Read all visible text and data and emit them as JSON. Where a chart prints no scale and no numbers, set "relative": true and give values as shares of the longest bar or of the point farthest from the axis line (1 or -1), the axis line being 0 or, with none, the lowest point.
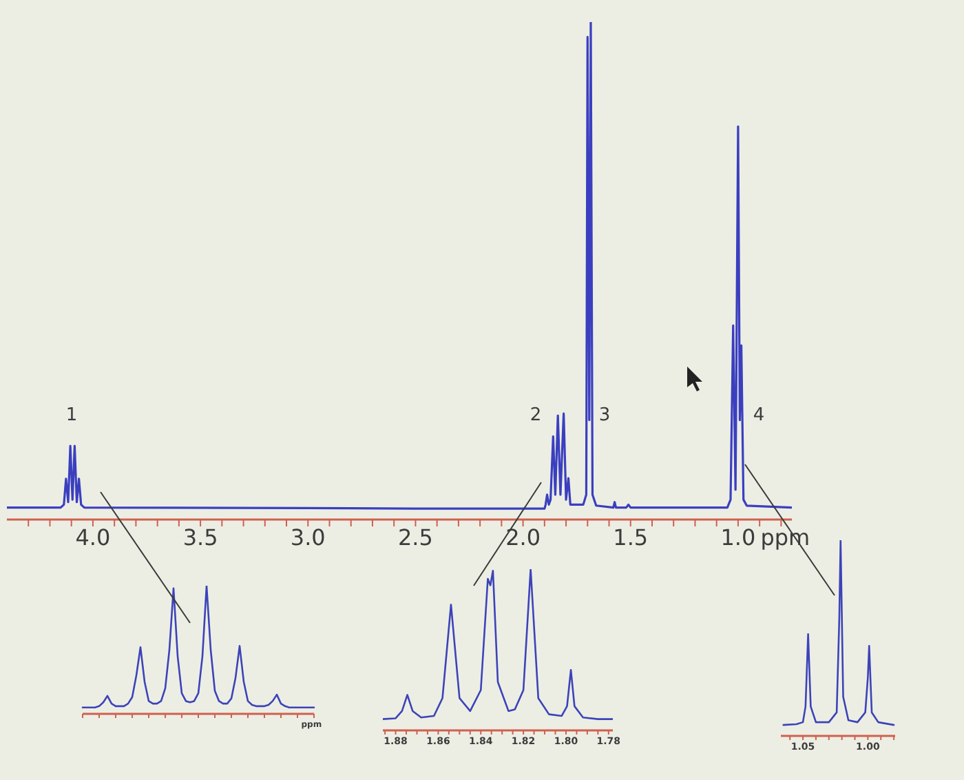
{
  "chart_data": [
    {
      "type": "line",
      "xlabel": "ppm",
      "relative": true,
      "color": "#3b3fbf",
      "xlim": [
        4.4,
        0.75
      ],
      "xticks": [
        {
          "value": 4.3,
          "label": null
        },
        {
          "value": 4.2,
          "label": null
        },
        {
          "value": 4.1,
          "label": null
        },
        {
          "value": 4,
          "label": "4.0"
        },
        {
          "value": 3.9,
          "label": null
        },
        {
          "value": 3.8,
          "label": null
        },
        {
          "value": 3.7,
          "label": null
        },
        {
          "value": 3.6,
          "label": null
        },
        3.5,
        {
          "value": 3.4,
          "label": null
        },
        {
          "value": 3.3,
          "label": null
        },
        {
          "value": 3.2,
          "label": null
        },
        {
          "value": 3.1,
          "label": null
        },
        {
          "value": 3,
          "label": "3.0"
        },
        {
          "value": 2.9,
          "label": null
        },
        {
          "value": 2.8,
          "label": null
        },
        {
          "value": 2.7,
          "label": null
        },
        {
          "value": 2.6,
          "label": null
        },
        2.5,
        {
          "value": 2.4,
          "label": null
        },
        {
          "value": 2.3,
          "label": null
        },
        {
          "value": 2.2,
          "label": null
        },
        {
          "value": 2.1,
          "label": null
        },
        {
          "value": 2,
          "label": "2.0"
        },
        {
          "value": 1.9,
          "label": null
        },
        {
          "value": 1.8,
          "label": null
        },
        {
          "value": 1.7,
          "label": null
        },
        {
          "value": 1.6,
          "label": null
        },
        1.5,
        {
          "value": 1.4,
          "label": null
        },
        {
          "value": 1.3,
          "label": null
        },
        {
          "value": 1.2,
          "label": null
        },
        {
          "value": 1.1,
          "label": null
        },
        {
          "value": 1,
          "label": "1.0"
        },
        {
          "value": 0.9,
          "label": null
        },
        {
          "value": 0.8,
          "label": null
        }
      ],
      "x": [
        4.4,
        4.15,
        4.135,
        4.125,
        4.115,
        4.105,
        4.095,
        4.085,
        4.075,
        4.065,
        4.055,
        4.04,
        3.0,
        2.5,
        1.9,
        1.895,
        1.888,
        1.88,
        1.872,
        1.86,
        1.85,
        1.838,
        1.826,
        1.811,
        1.8,
        1.789,
        1.78,
        1.72,
        1.706,
        1.7,
        1.692,
        1.685,
        1.677,
        1.66,
        1.58,
        1.574,
        1.568,
        1.52,
        1.51,
        1.5,
        1.05,
        1.035,
        1.023,
        1.012,
        1.0,
        0.992,
        0.985,
        0.975,
        0.96,
        0.75
      ],
      "values": [
        0.024,
        0.024,
        0.03,
        0.082,
        0.035,
        0.148,
        0.04,
        0.148,
        0.035,
        0.082,
        0.03,
        0.024,
        0.023,
        0.022,
        0.022,
        0.03,
        0.05,
        0.03,
        0.04,
        0.167,
        0.05,
        0.209,
        0.05,
        0.213,
        0.04,
        0.083,
        0.03,
        0.03,
        0.05,
        0.97,
        0.2,
        1.0,
        0.05,
        0.028,
        0.024,
        0.035,
        0.024,
        0.024,
        0.03,
        0.024,
        0.024,
        0.04,
        0.39,
        0.06,
        0.79,
        0.2,
        0.35,
        0.04,
        0.028,
        0.024
      ],
      "annotations": [
        "1",
        "2",
        "3",
        "4"
      ]
    },
    {
      "type": "line",
      "xlabel": "ppm",
      "relative": true,
      "color": "#3d43b8",
      "categories": [
        null,
        null,
        null,
        null,
        null,
        null,
        null,
        null,
        null,
        null,
        null,
        null,
        null,
        null,
        null,
        null,
        null,
        null,
        null,
        null,
        null,
        null,
        null,
        null,
        null,
        null,
        null,
        null,
        null,
        null,
        null,
        null,
        null,
        null,
        null,
        null,
        null,
        null,
        null,
        null,
        null,
        null,
        null,
        null,
        null,
        null,
        null,
        null,
        null,
        null,
        null,
        null,
        null,
        null,
        null,
        null,
        null
      ],
      "values": [
        0.05,
        0.05,
        0.05,
        0.05,
        0.06,
        0.09,
        0.14,
        0.08,
        0.06,
        0.06,
        0.06,
        0.08,
        0.13,
        0.3,
        0.52,
        0.25,
        0.1,
        0.08,
        0.08,
        0.1,
        0.2,
        0.5,
        0.98,
        0.45,
        0.16,
        0.1,
        0.09,
        0.1,
        0.16,
        0.45,
        1.0,
        0.5,
        0.18,
        0.1,
        0.08,
        0.08,
        0.12,
        0.28,
        0.53,
        0.25,
        0.1,
        0.07,
        0.06,
        0.06,
        0.06,
        0.07,
        0.1,
        0.15,
        0.08,
        0.06,
        0.05,
        0.05,
        0.05,
        0.05,
        0.05,
        0.05,
        0.05
      ]
    },
    {
      "type": "line",
      "relative": true,
      "color": "#3d43b8",
      "xlim": [
        1.886,
        1.778
      ],
      "xticks": [
        {
          "value": 1.885,
          "label": null
        },
        1.88,
        {
          "value": 1.875,
          "label": null
        },
        {
          "value": 1.87,
          "label": null
        },
        {
          "value": 1.865,
          "label": null
        },
        1.86,
        {
          "value": 1.855,
          "label": null
        },
        {
          "value": 1.85,
          "label": null
        },
        {
          "value": 1.845,
          "label": null
        },
        1.84,
        {
          "value": 1.835,
          "label": null
        },
        {
          "value": 1.83,
          "label": null
        },
        {
          "value": 1.825,
          "label": null
        },
        1.82,
        {
          "value": 1.815,
          "label": null
        },
        {
          "value": 1.81,
          "label": null
        },
        {
          "value": 1.805,
          "label": null
        },
        {
          "value": 1.8,
          "label": "1.80"
        },
        {
          "value": 1.795,
          "label": null
        },
        {
          "value": 1.79,
          "label": null
        },
        {
          "value": 1.785,
          "label": null
        },
        1.78
      ],
      "x": [
        1.886,
        1.88,
        1.877,
        1.8745,
        1.872,
        1.868,
        1.862,
        1.858,
        1.854,
        1.85,
        1.845,
        1.84,
        1.8367,
        1.8355,
        1.8343,
        1.832,
        1.827,
        1.824,
        1.82,
        1.8166,
        1.813,
        1.808,
        1.802,
        1.7995,
        1.7977,
        1.796,
        1.792,
        1.785,
        1.778
      ],
      "values": [
        0.07,
        0.075,
        0.12,
        0.22,
        0.12,
        0.08,
        0.09,
        0.2,
        0.78,
        0.2,
        0.12,
        0.25,
        0.94,
        0.9,
        0.99,
        0.3,
        0.12,
        0.13,
        0.25,
        1.0,
        0.2,
        0.1,
        0.09,
        0.15,
        0.375,
        0.15,
        0.08,
        0.07,
        0.07
      ]
    },
    {
      "type": "line",
      "relative": true,
      "color": "#3d43b8",
      "xlim": [
        1.067,
        0.979
      ],
      "xticks": [
        {
          "value": 1.06,
          "label": null
        },
        1.05,
        {
          "value": 1.04,
          "label": null
        },
        {
          "value": 1.03,
          "label": null
        },
        {
          "value": 1.02,
          "label": null
        },
        {
          "value": 1.01,
          "label": null
        },
        {
          "value": 1,
          "label": "1.00"
        },
        {
          "value": 0.99,
          "label": null
        },
        {
          "value": 0.98,
          "label": null
        }
      ],
      "x": [
        1.065,
        1.055,
        1.05,
        1.048,
        1.046,
        1.044,
        1.04,
        1.03,
        1.024,
        1.022,
        1.021,
        1.019,
        1.015,
        1.008,
        1.002,
        1.0,
        0.999,
        0.997,
        0.992,
        0.98
      ],
      "values": [
        0.056,
        0.06,
        0.07,
        0.15,
        0.52,
        0.15,
        0.07,
        0.07,
        0.12,
        0.6,
        1.0,
        0.2,
        0.08,
        0.07,
        0.12,
        0.3,
        0.46,
        0.12,
        0.07,
        0.056
      ]
    }
  ]
}
